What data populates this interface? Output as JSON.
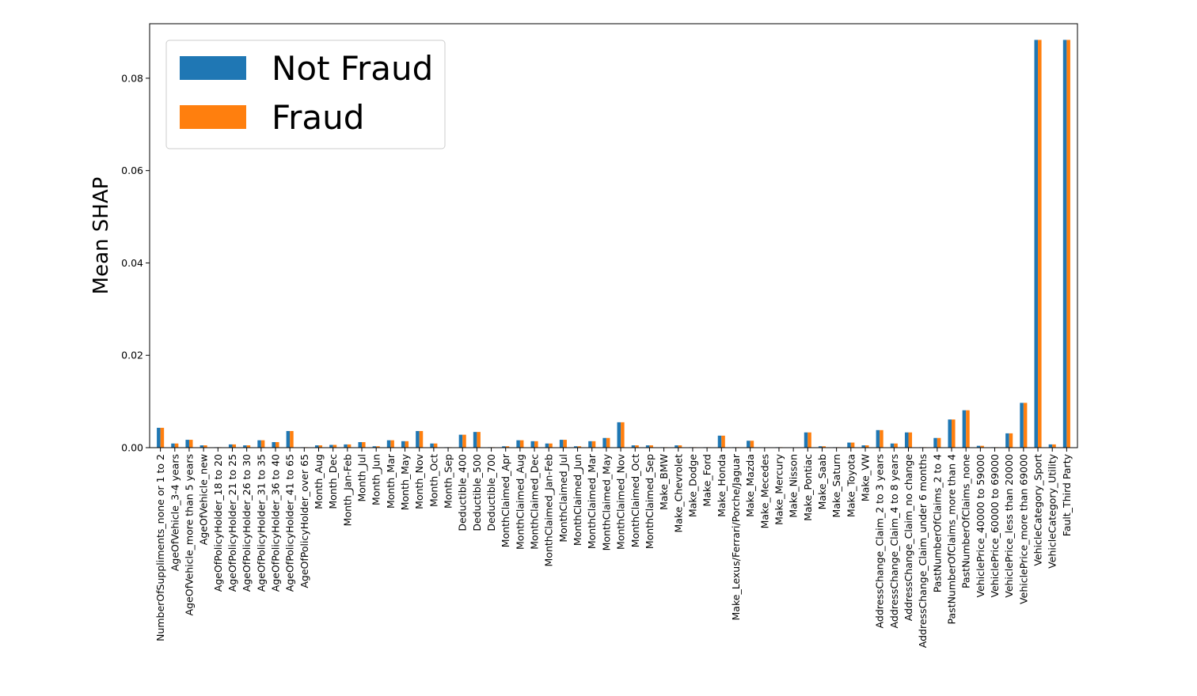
{
  "chart_data": {
    "type": "bar",
    "title": "",
    "xlabel": "",
    "ylabel": "Mean SHAP",
    "ylim": [
      0,
      0.0918
    ],
    "yticks": [
      "0.00",
      "0.02",
      "0.04",
      "0.06",
      "0.08"
    ],
    "ytick_values": [
      0,
      0.02,
      0.04,
      0.06,
      0.08
    ],
    "grid": false,
    "legend_position": "top-left",
    "categories": [
      "NumberOfSuppliments_none or 1 to 2",
      "AgeOfVehicle_3-4 years",
      "AgeOfVehicle_more than 5 years",
      "AgeOfVehicle_new",
      "AgeOfPolicyHolder_18 to 20",
      "AgeOfPolicyHolder_21 to 25",
      "AgeOfPolicyHolder_26 to 30",
      "AgeOfPolicyHolder_31 to 35",
      "AgeOfPolicyHolder_36 to 40",
      "AgeOfPolicyHolder_41 to 65",
      "AgeOfPolicyHolder_over 65",
      "Month_Aug",
      "Month_Dec",
      "Month_Jan-Feb",
      "Month_Jul",
      "Month_Jun",
      "Month_Mar",
      "Month_May",
      "Month_Nov",
      "Month_Oct",
      "Month_Sep",
      "Deductible_400",
      "Deductible_500",
      "Deductible_700",
      "MonthClaimed_Apr",
      "MonthClaimed_Aug",
      "MonthClaimed_Dec",
      "MonthClaimed_Jan-Feb",
      "MonthClaimed_Jul",
      "MonthClaimed_Jun",
      "MonthClaimed_Mar",
      "MonthClaimed_May",
      "MonthClaimed_Nov",
      "MonthClaimed_Oct",
      "MonthClaimed_Sep",
      "Make_BMW",
      "Make_Chevrolet",
      "Make_Dodge",
      "Make_Ford",
      "Make_Honda",
      "Make_Lexus/Ferrari/Porche/Jaguar",
      "Make_Mazda",
      "Make_Mecedes",
      "Make_Mercury",
      "Make_Nisson",
      "Make_Pontiac",
      "Make_Saab",
      "Make_Saturn",
      "Make_Toyota",
      "Make_VW",
      "AddressChange_Claim_2 to 3 years",
      "AddressChange_Claim_4 to 8 years",
      "AddressChange_Claim_no change",
      "AddressChange_Claim_under 6 months",
      "PastNumberOfClaims_2 to 4",
      "PastNumberOfClaims_more than 4",
      "PastNumberOfClaims_none",
      "VehiclePrice_40000 to 59000",
      "VehiclePrice_60000 to 69000",
      "VehiclePrice_less than 20000",
      "VehiclePrice_more than 69000",
      "VehicleCategory_Sport",
      "VehicleCategory_Utility",
      "Fault_Third Party"
    ],
    "series": [
      {
        "name": "Not Fraud",
        "color": "#1f77b4",
        "values": [
          0.0043,
          0.0009,
          0.0017,
          0.0005,
          0.0001,
          0.0007,
          0.0005,
          0.0016,
          0.0012,
          0.0036,
          0.0001,
          0.0005,
          0.0006,
          0.0007,
          0.0012,
          0.0003,
          0.0016,
          0.0014,
          0.0036,
          0.0009,
          0.0001,
          0.0028,
          0.0034,
          0.0001,
          0.0003,
          0.0016,
          0.0014,
          0.0009,
          0.0017,
          0.0003,
          0.0014,
          0.0021,
          0.0055,
          0.0005,
          0.0005,
          0.0001,
          0.0005,
          0.0001,
          0.0001,
          0.0026,
          0.0001,
          0.0015,
          0.0,
          0.0001,
          0.0,
          0.0033,
          0.0003,
          0.0001,
          0.0011,
          0.0005,
          0.0038,
          0.0009,
          0.0033,
          0.0001,
          0.0021,
          0.0061,
          0.0081,
          0.0004,
          0.0001,
          0.0031,
          0.0097,
          0.0883,
          0.0007,
          0.0883
        ]
      },
      {
        "name": "Fraud",
        "color": "#ff7f0e",
        "values": [
          0.0043,
          0.0009,
          0.0017,
          0.0005,
          0.0001,
          0.0007,
          0.0005,
          0.0016,
          0.0012,
          0.0036,
          0.0001,
          0.0005,
          0.0006,
          0.0007,
          0.0012,
          0.0003,
          0.0016,
          0.0014,
          0.0036,
          0.0009,
          0.0001,
          0.0028,
          0.0034,
          0.0001,
          0.0003,
          0.0016,
          0.0014,
          0.0009,
          0.0017,
          0.0003,
          0.0014,
          0.0021,
          0.0055,
          0.0005,
          0.0005,
          0.0001,
          0.0005,
          0.0001,
          0.0001,
          0.0026,
          0.0001,
          0.0015,
          0.0,
          0.0001,
          0.0,
          0.0033,
          0.0003,
          0.0001,
          0.0011,
          0.0005,
          0.0038,
          0.0009,
          0.0033,
          0.0001,
          0.0021,
          0.0061,
          0.0081,
          0.0004,
          0.0001,
          0.0031,
          0.0097,
          0.0883,
          0.0007,
          0.0883
        ]
      }
    ]
  }
}
